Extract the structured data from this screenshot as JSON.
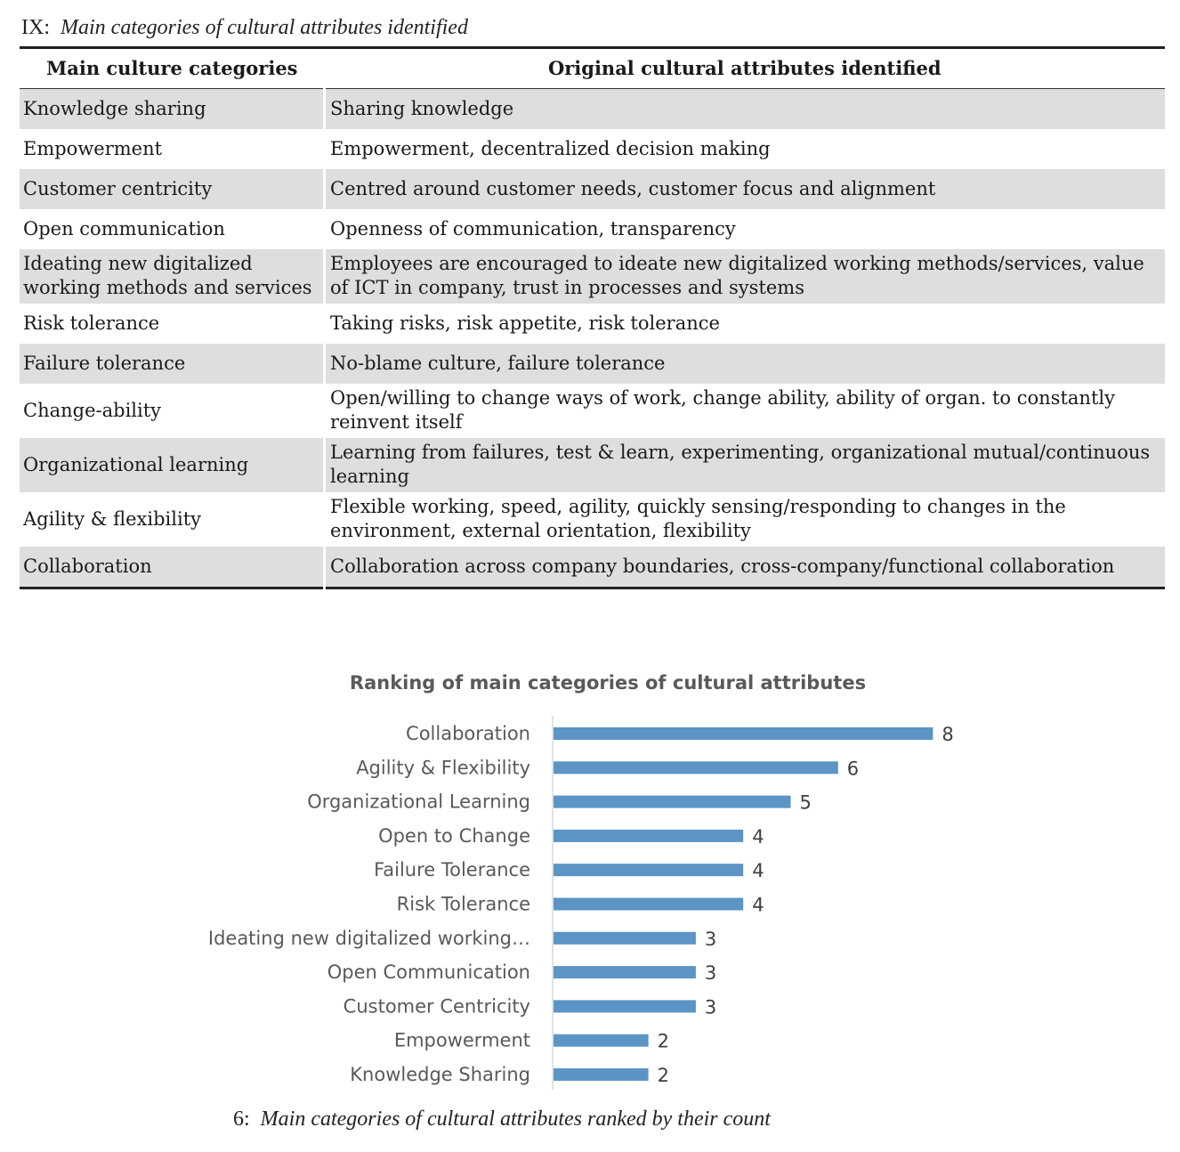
{
  "table": {
    "caption_number": "IX:",
    "caption_text": "Main categories of cultural attributes identified",
    "headers": [
      "Main culture categories",
      "Original cultural attributes identified"
    ],
    "rows": [
      {
        "category": "Knowledge sharing",
        "attributes": "Sharing knowledge",
        "shaded": true
      },
      {
        "category": "Empowerment",
        "attributes": "Empowerment, decentralized decision making",
        "shaded": false
      },
      {
        "category": "Customer centricity",
        "attributes": "Centred around customer needs, customer focus and alignment",
        "shaded": true
      },
      {
        "category": "Open communication",
        "attributes": "Openness of communication, transparency",
        "shaded": false
      },
      {
        "category": "Ideating new digitalized working methods and services",
        "attributes": "Employees are encouraged to ideate new digitalized working methods/services, value of ICT in company, trust in processes and systems",
        "shaded": true
      },
      {
        "category": "Risk tolerance",
        "attributes": "Taking risks, risk appetite, risk tolerance",
        "shaded": false
      },
      {
        "category": "Failure tolerance",
        "attributes": "No-blame culture, failure tolerance",
        "shaded": true
      },
      {
        "category": "Change-ability",
        "attributes": "Open/willing to change ways of work, change ability, ability of organ. to constantly reinvent itself",
        "shaded": false
      },
      {
        "category": "Organizational learning",
        "attributes": "Learning from failures, test & learn, experimenting, organizational mutual/continuous learning",
        "shaded": true
      },
      {
        "category": "Agility & flexibility",
        "attributes": "Flexible working, speed, agility, quickly sensing/responding to changes in the environment, external orientation, flexibility",
        "shaded": false
      },
      {
        "category": "Collaboration",
        "attributes": "Collaboration across company boundaries, cross-company/functional collaboration",
        "shaded": true
      }
    ]
  },
  "chart_data": {
    "type": "bar",
    "orientation": "horizontal",
    "title": "Ranking of main categories of cultural attributes",
    "categories": [
      "Collaboration",
      "Agility & Flexibility",
      "Organizational Learning",
      "Open to Change",
      "Failure Tolerance",
      "Risk Tolerance",
      "Ideating new digitalized working…",
      "Open Communication",
      "Customer Centricity",
      "Empowerment",
      "Knowledge Sharing"
    ],
    "values": [
      8,
      6,
      5,
      4,
      4,
      4,
      3,
      3,
      3,
      2,
      2
    ],
    "bar_color": "#5b94c5",
    "xlim": [
      0,
      8
    ],
    "grid": false,
    "data_labels": true
  },
  "figure": {
    "caption_number": "6:",
    "caption_text": "Main categories of cultural attributes ranked by their count"
  }
}
